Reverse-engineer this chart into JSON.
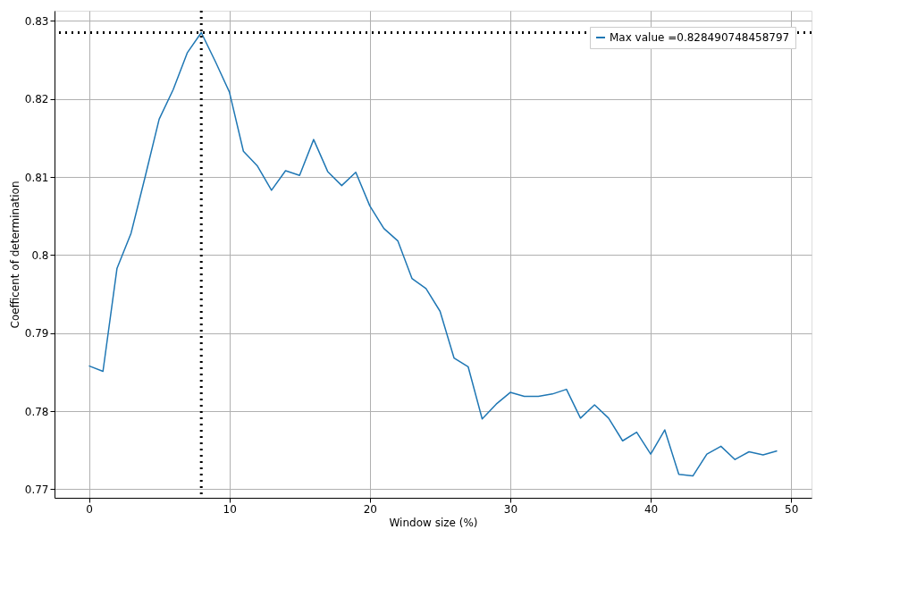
{
  "chart_data": {
    "type": "line",
    "xlabel": "Window size (%)",
    "ylabel": "Coefficent of determination",
    "x": [
      0,
      1,
      2,
      3,
      4,
      5,
      6,
      7,
      8,
      9,
      10,
      11,
      12,
      13,
      14,
      15,
      16,
      17,
      18,
      19,
      20,
      21,
      22,
      23,
      24,
      25,
      26,
      27,
      28,
      29,
      30,
      31,
      32,
      33,
      34,
      35,
      36,
      37,
      38,
      39,
      40,
      41,
      42,
      43,
      44,
      45,
      46,
      47,
      48,
      49
    ],
    "series": [
      {
        "name": "Max value =0.828490748458797",
        "color": "#1f77b4",
        "values": [
          0.7858,
          0.7851,
          0.7983,
          0.8028,
          0.81,
          0.8174,
          0.8212,
          0.8259,
          0.8285,
          0.8248,
          0.8209,
          0.8133,
          0.8114,
          0.8083,
          0.8108,
          0.8102,
          0.8148,
          0.8107,
          0.8089,
          0.8106,
          0.8063,
          0.8034,
          0.8018,
          0.797,
          0.7957,
          0.7928,
          0.7868,
          0.7857,
          0.779,
          0.7809,
          0.7824,
          0.7819,
          0.7819,
          0.7822,
          0.7828,
          0.7791,
          0.7808,
          0.7791,
          0.7762,
          0.7773,
          0.7745,
          0.7776,
          0.7719,
          0.7717,
          0.7745,
          0.7755,
          0.7738,
          0.7748,
          0.7744,
          0.7749
        ]
      }
    ],
    "xlim": [
      -2.45,
      51.45
    ],
    "ylim": [
      0.7689,
      0.8313
    ],
    "xticks": [
      0,
      10,
      20,
      30,
      40,
      50
    ],
    "yticks": [
      0.77,
      0.78,
      0.79,
      0.8,
      0.81,
      0.82,
      0.83
    ],
    "ref_lines": [
      {
        "axis": "x",
        "value": 8,
        "color": "#000000",
        "line_style": "dotted"
      },
      {
        "axis": "y",
        "value": 0.8285,
        "color": "#000000",
        "line_style": "dotted"
      }
    ],
    "grid": true,
    "legend": "top right",
    "marker": "none",
    "line_style": "solid"
  }
}
